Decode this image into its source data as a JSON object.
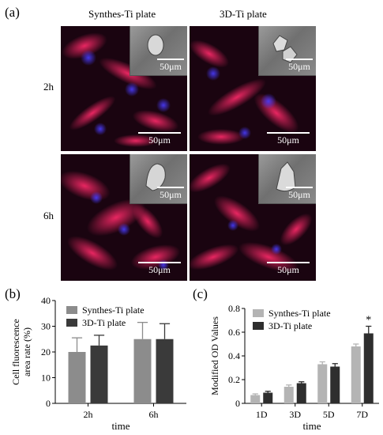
{
  "figure": {
    "panel_a_label": "(a)",
    "panel_b_label": "(b)",
    "panel_c_label": "(c)",
    "column_titles": [
      "Synthes-Ti plate",
      "3D-Ti plate"
    ],
    "row_labels": [
      "2h",
      "6h"
    ],
    "scale_bar_label": "50μm",
    "sem_scale_label": "50μm"
  },
  "chart_data": [
    {
      "type": "bar",
      "panel": "(b)",
      "categories": [
        "2h",
        "6h"
      ],
      "series": [
        {
          "name": "Synthes-Ti plate",
          "color": "#8c8c8c",
          "values": [
            20,
            25
          ],
          "errors": [
            5.5,
            6.5
          ]
        },
        {
          "name": "3D-Ti plate",
          "color": "#3a3a3a",
          "values": [
            22.5,
            25
          ],
          "errors": [
            4,
            6
          ]
        }
      ],
      "xlabel": "time",
      "ylabel": "Cell fluorescence area rate (%)",
      "ylabel_lines": [
        "Cell fluorescence",
        "area rate (%)"
      ],
      "ylim": [
        0,
        40
      ],
      "yticks": [
        0,
        10,
        20,
        30,
        40
      ],
      "legend": "top-left",
      "annotations": []
    },
    {
      "type": "bar",
      "panel": "(c)",
      "categories": [
        "1D",
        "3D",
        "5D",
        "7D"
      ],
      "series": [
        {
          "name": "Synthes-Ti plate",
          "color": "#b4b4b4",
          "values": [
            0.07,
            0.14,
            0.33,
            0.48
          ],
          "errors": [
            0.01,
            0.015,
            0.02,
            0.02
          ]
        },
        {
          "name": "3D-Ti plate",
          "color": "#2e2e2e",
          "values": [
            0.09,
            0.17,
            0.31,
            0.59
          ],
          "errors": [
            0.012,
            0.012,
            0.025,
            0.06
          ]
        }
      ],
      "xlabel": "time",
      "ylabel": "Modified OD Values",
      "ylim": [
        0,
        0.8
      ],
      "yticks": [
        0,
        0.2,
        0.4,
        0.6,
        0.8
      ],
      "ytick_labels": [
        "0",
        "0.2",
        "0.4",
        "0.6",
        "0.8"
      ],
      "legend": "top-left",
      "annotations": [
        {
          "text": "*",
          "category": "7D",
          "series": "3D-Ti plate"
        }
      ]
    }
  ]
}
